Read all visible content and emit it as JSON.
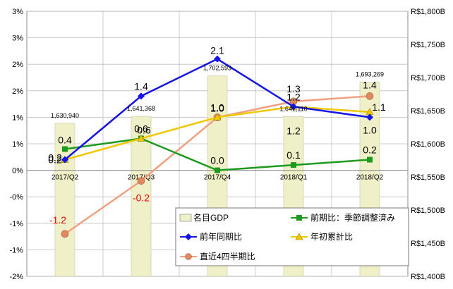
{
  "chart_data": {
    "type": "bar+line",
    "title": "",
    "categories": [
      "2017/Q2",
      "2017/Q3",
      "2017/Q4",
      "2018/Q1",
      "2018/Q2"
    ],
    "left_axis": {
      "ylim": [
        -2,
        3
      ],
      "tick_values": [
        -2,
        -1.5,
        -1,
        -0.5,
        0,
        0.5,
        1,
        1.5,
        2,
        2.5,
        3
      ],
      "tick_labels": [
        "-2%",
        "-1%",
        "-1%",
        "-0%",
        "0%",
        "1%",
        "1%",
        "2%",
        "2%",
        "3%",
        "3%"
      ]
    },
    "right_axis": {
      "ylim": [
        1400,
        1800
      ],
      "tick_values": [
        1400,
        1450,
        1500,
        1550,
        1600,
        1650,
        1700,
        1750,
        1800
      ],
      "tick_labels": [
        "R$1,400B",
        "R$1,450B",
        "R$1,500B",
        "R$1,550B",
        "R$1,600B",
        "R$1,650B",
        "R$1,700B",
        "R$1,750B",
        "R$1,800B"
      ]
    },
    "bars": {
      "name": "名目GDP",
      "axis": "right",
      "values": [
        1630940,
        1641368,
        1702593,
        1641110,
        1693269
      ],
      "labels": [
        "1,630,940",
        "1,641,368",
        "1,702,593",
        "1,641,110",
        "1,693,269"
      ],
      "color": "#f0f0c8"
    },
    "series": [
      {
        "name": "前期比：季節調整済み",
        "axis": "left",
        "values": [
          0.4,
          0.6,
          0.0,
          0.1,
          0.2
        ],
        "labels": [
          "0.4",
          "0.6",
          "0.0",
          "0.1",
          "0.2"
        ],
        "color": "#1e9a1e",
        "marker": "square"
      },
      {
        "name": "前年同期比",
        "axis": "left",
        "values": [
          0.2,
          1.4,
          2.1,
          1.2,
          1.0
        ],
        "labels": [
          "0.2",
          "1.4",
          "2.1",
          "1.2",
          "1.0"
        ],
        "color": "#1414e6",
        "marker": "diamond"
      },
      {
        "name": "年初累計比",
        "axis": "left",
        "values": [
          0.2,
          0.6,
          1.0,
          1.2,
          1.1
        ],
        "labels": [
          "0.2",
          "0.6",
          "1.0",
          "1.2",
          "1.1"
        ],
        "color": "#f0c800",
        "marker": "triangle"
      },
      {
        "name": "直近4四半期比",
        "axis": "left",
        "values": [
          -1.2,
          -0.2,
          1.0,
          1.3,
          1.4
        ],
        "labels": [
          "-1.2",
          "-0.2",
          "1.0",
          "1.3",
          "1.4"
        ],
        "color": "#f0a080",
        "marker": "circle"
      }
    ],
    "grid": true,
    "legend_position": "bottom-right"
  }
}
